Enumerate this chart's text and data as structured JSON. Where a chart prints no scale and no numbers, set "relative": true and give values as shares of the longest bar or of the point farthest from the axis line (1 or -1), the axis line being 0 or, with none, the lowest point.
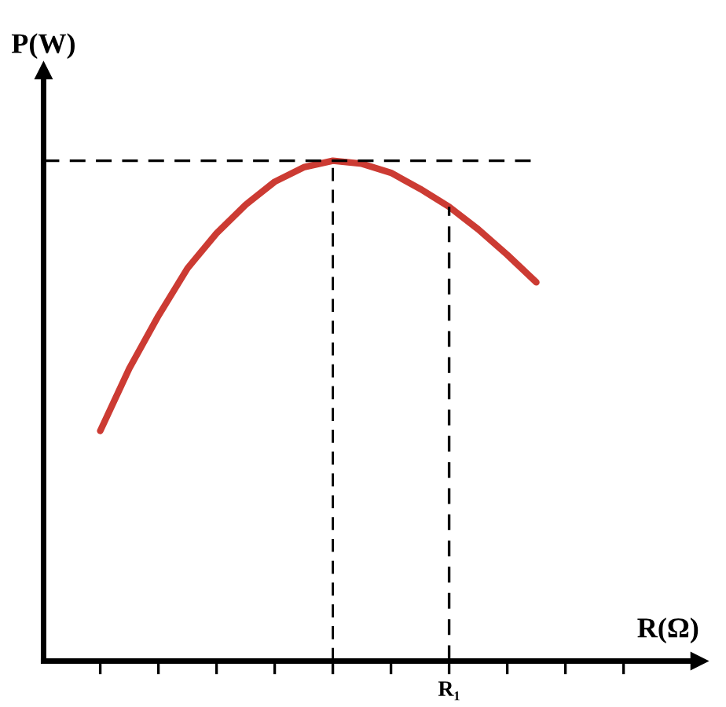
{
  "chart_data": {
    "type": "line",
    "relative": true,
    "xlabel": "R(Ω)",
    "ylabel": "P(W)",
    "categories": [
      null,
      null,
      null,
      null,
      null,
      null,
      null,
      null,
      null,
      null,
      null,
      null,
      null,
      null,
      null,
      null
    ],
    "annotations": [
      "R₁"
    ],
    "legend": false,
    "marker": "none",
    "line_style": "solid",
    "series": [
      {
        "color": "#cc3b33",
        "values": [
          0.46,
          0.585,
          0.69,
          0.785,
          0.855,
          0.912,
          0.958,
          0.987,
          1,
          0.994,
          0.976,
          0.944,
          0.908,
          0.863,
          0.812,
          0.757
        ]
      }
    ],
    "ref_lines": [
      {
        "axis": "y",
        "value": 1,
        "line_style": "dashed",
        "color": "#000000"
      }
    ]
  }
}
